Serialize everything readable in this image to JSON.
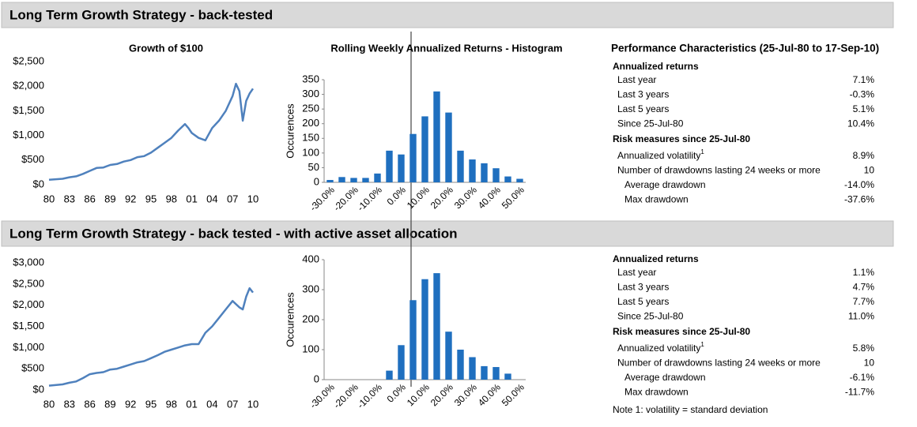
{
  "sections": [
    {
      "title": "Long Term Growth Strategy - back-tested"
    },
    {
      "title": "Long Term Growth Strategy - back tested - with active asset allocation"
    }
  ],
  "chart_data": [
    {
      "type": "line",
      "title": "Growth of $100",
      "color": "#4f81bd",
      "x": [
        1980,
        1981,
        1982,
        1983,
        1984,
        1985,
        1986,
        1987,
        1988,
        1989,
        1990,
        1991,
        1992,
        1993,
        1994,
        1995,
        1996,
        1997,
        1998,
        1999,
        2000,
        2000.5,
        2001,
        2002,
        2003,
        2004,
        2005,
        2006,
        2007,
        2007.5,
        2008,
        2008.5,
        2009,
        2009.5,
        2010
      ],
      "values": [
        100,
        110,
        120,
        150,
        170,
        220,
        280,
        340,
        350,
        400,
        420,
        470,
        500,
        560,
        580,
        650,
        750,
        850,
        950,
        1100,
        1230,
        1150,
        1050,
        950,
        900,
        1150,
        1300,
        1500,
        1800,
        2050,
        1900,
        1300,
        1700,
        1850,
        1950
      ],
      "xlim": [
        1980,
        2010
      ],
      "xticks": [
        {
          "value": 1980,
          "label": "80"
        },
        {
          "value": 1983,
          "label": "83"
        },
        {
          "value": 1986,
          "label": "86"
        },
        {
          "value": 1989,
          "label": "89"
        },
        {
          "value": 1992,
          "label": "92"
        },
        {
          "value": 1995,
          "label": "95"
        },
        {
          "value": 1998,
          "label": "98"
        },
        {
          "value": 2001,
          "label": "01"
        },
        {
          "value": 2004,
          "label": "04"
        },
        {
          "value": 2007,
          "label": "07"
        },
        {
          "value": 2010,
          "label": "10"
        }
      ],
      "ylim": [
        0,
        2500
      ],
      "yticks": [
        {
          "value": 0,
          "label": "$0"
        },
        {
          "value": 500,
          "label": "$500"
        },
        {
          "value": 1000,
          "label": "$1,000"
        },
        {
          "value": 1500,
          "label": "$1,500"
        },
        {
          "value": 2000,
          "label": "$2,000"
        },
        {
          "value": 2500,
          "label": "$2,500"
        }
      ]
    },
    {
      "type": "bar",
      "title": "Rolling Weekly Annualized Returns - Histogram",
      "y_label": "Occurences",
      "color": "#1f6fbf",
      "categories": [
        "-30.0%",
        null,
        "-20.0%",
        null,
        "-10.0%",
        null,
        "0.0%",
        null,
        "10.0%",
        null,
        "20.0%",
        null,
        "30.0%",
        null,
        "40.0%",
        null,
        "50.0%"
      ],
      "values": [
        8,
        18,
        15,
        15,
        30,
        108,
        95,
        165,
        225,
        310,
        238,
        108,
        78,
        65,
        48,
        20,
        12
      ],
      "ylim": [
        0,
        350
      ],
      "yticks": [
        0,
        50,
        100,
        150,
        200,
        250,
        300,
        350
      ]
    },
    {
      "type": "line",
      "color": "#4f81bd",
      "x": [
        1980,
        1982,
        1983,
        1984,
        1985,
        1986,
        1987,
        1988,
        1989,
        1990,
        1991,
        1992,
        1993,
        1994,
        1995,
        1996,
        1997,
        1998,
        1999,
        2000,
        2001,
        2002,
        2003,
        2004,
        2005,
        2006,
        2007,
        2008,
        2008.5,
        2009,
        2009.5,
        2010
      ],
      "values": [
        100,
        130,
        170,
        200,
        280,
        370,
        400,
        420,
        480,
        500,
        550,
        600,
        650,
        680,
        750,
        820,
        900,
        950,
        1000,
        1050,
        1080,
        1080,
        1350,
        1500,
        1700,
        1900,
        2100,
        1950,
        1900,
        2200,
        2400,
        2300
      ],
      "xlim": [
        1980,
        2010
      ],
      "xticks": [
        {
          "value": 1980,
          "label": "80"
        },
        {
          "value": 1983,
          "label": "83"
        },
        {
          "value": 1986,
          "label": "86"
        },
        {
          "value": 1989,
          "label": "89"
        },
        {
          "value": 1992,
          "label": "92"
        },
        {
          "value": 1995,
          "label": "95"
        },
        {
          "value": 1998,
          "label": "98"
        },
        {
          "value": 2001,
          "label": "01"
        },
        {
          "value": 2004,
          "label": "04"
        },
        {
          "value": 2007,
          "label": "07"
        },
        {
          "value": 2010,
          "label": "10"
        }
      ],
      "ylim": [
        0,
        3000
      ],
      "yticks": [
        {
          "value": 0,
          "label": "$0"
        },
        {
          "value": 500,
          "label": "$500"
        },
        {
          "value": 1000,
          "label": "$1,000"
        },
        {
          "value": 1500,
          "label": "$1,500"
        },
        {
          "value": 2000,
          "label": "$2,000"
        },
        {
          "value": 2500,
          "label": "$2,500"
        },
        {
          "value": 3000,
          "label": "$3,000"
        }
      ]
    },
    {
      "type": "bar",
      "y_label": "Occurences",
      "color": "#1f6fbf",
      "categories": [
        "-30.0%",
        null,
        "-20.0%",
        null,
        "-10.0%",
        null,
        "0.0%",
        null,
        "10.0%",
        null,
        "20.0%",
        null,
        "30.0%",
        null,
        "40.0%",
        null,
        "50.0%"
      ],
      "values": [
        0,
        0,
        0,
        0,
        0,
        30,
        115,
        265,
        335,
        355,
        160,
        100,
        75,
        45,
        42,
        20,
        0
      ],
      "ylim": [
        0,
        400
      ],
      "yticks": [
        0,
        100,
        200,
        300,
        400
      ]
    }
  ],
  "performance": {
    "title": "Performance Characteristics (25-Jul-80 to 17-Sep-10)",
    "blocks": [
      {
        "groups": [
          {
            "heading": "Annualized returns",
            "rows": [
              {
                "label": "Last year",
                "value": "7.1%"
              },
              {
                "label": "Last 3 years",
                "value": "-0.3%"
              },
              {
                "label": "Last 5 years",
                "value": "5.1%"
              },
              {
                "label": "Since 25-Jul-80",
                "value": "10.4%"
              }
            ]
          },
          {
            "heading": "Risk measures since 25-Jul-80",
            "rows": [
              {
                "label": "Annualized volatility",
                "sup": "1",
                "value": "8.9%"
              },
              {
                "label": "Number of drawdowns lasting 24 weeks or more",
                "value": "10"
              },
              {
                "label": "Average drawdown",
                "value": "-14.0%"
              },
              {
                "label": "Max drawdown",
                "value": "-37.6%"
              }
            ]
          }
        ]
      },
      {
        "groups": [
          {
            "heading": "Annualized returns",
            "rows": [
              {
                "label": "Last year",
                "value": "1.1%"
              },
              {
                "label": "Last 3 years",
                "value": "4.7%"
              },
              {
                "label": "Last 5 years",
                "value": "7.7%"
              },
              {
                "label": "Since 25-Jul-80",
                "value": "11.0%"
              }
            ]
          },
          {
            "heading": "Risk measures since 25-Jul-80",
            "rows": [
              {
                "label": "Annualized volatility",
                "sup": "1",
                "value": "5.8%"
              },
              {
                "label": "Number of drawdowns lasting 24 weeks or more",
                "value": "10"
              },
              {
                "label": "Average drawdown",
                "value": "-6.1%"
              },
              {
                "label": "Max drawdown",
                "value": "-11.7%"
              }
            ]
          }
        ]
      }
    ],
    "note": "Note 1: volatility = standard deviation"
  }
}
